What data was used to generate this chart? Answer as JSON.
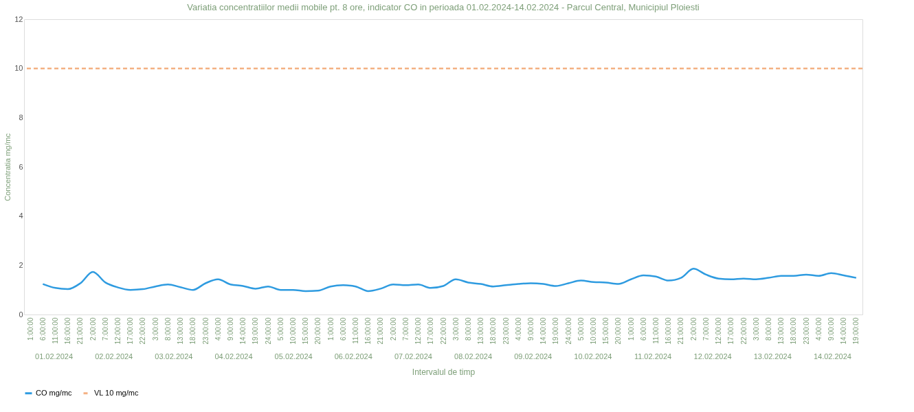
{
  "chart_data": {
    "type": "line",
    "title": "Variatia concentratiilor medii mobile pt. 8 ore, indicator CO in perioada 01.02.2024-14.02.2024 - Parcul Central, Municipiul Ploiesti",
    "xlabel": "Intervalul de timp",
    "ylabel": "Concentratia mg/mc",
    "categories": [
      "1:00:00",
      "6:00:00",
      "11:00:00",
      "16:00:00",
      "21:00:00",
      "2:00:00",
      "7:00:00",
      "12:00:00",
      "17:00:00",
      "22:00:00",
      "3:00:00",
      "8:00:00",
      "13:00:00",
      "18:00:00",
      "23:00:00",
      "4:00:00",
      "9:00:00",
      "14:00:00",
      "19:00:00",
      "24:00:00",
      "5:00:00",
      "10:00:00",
      "15:00:00",
      "20:00:00",
      "1:00:00",
      "6:00:00",
      "11:00:00",
      "16:00:00",
      "21:00:00",
      "2:00:00",
      "7:00:00",
      "12:00:00",
      "17:00:00",
      "22:00:00",
      "3:00:00",
      "8:00:00",
      "13:00:00",
      "18:00:00",
      "23:00:00",
      "4:00:00",
      "9:00:00",
      "14:00:00",
      "19:00:00",
      "24:00:00",
      "5:00:00",
      "10:00:00",
      "15:00:00",
      "20:00:00",
      "1:00:00",
      "6:00:00",
      "11:00:00",
      "16:00:00",
      "21:00:00",
      "2:00:00",
      "7:00:00",
      "12:00:00",
      "17:00:00",
      "22:00:00",
      "3:00:00",
      "8:00:00",
      "13:00:00",
      "18:00:00",
      "23:00:00",
      "4:00:00",
      "9:00:00",
      "14:00:00",
      "19:00:00"
    ],
    "series": [
      {
        "name": "CO mg/mc",
        "color": "#2e9be0",
        "values": [
          null,
          1.24,
          1.08,
          1.03,
          1.27,
          1.73,
          1.3,
          1.1,
          1.0,
          1.03,
          1.14,
          1.22,
          1.11,
          1.0,
          1.27,
          1.43,
          1.22,
          1.16,
          1.05,
          1.14,
          1.0,
          1.0,
          0.95,
          0.97,
          1.14,
          1.19,
          1.14,
          0.95,
          1.05,
          1.22,
          1.19,
          1.22,
          1.08,
          1.16,
          1.43,
          1.3,
          1.24,
          1.14,
          1.19,
          1.24,
          1.27,
          1.24,
          1.16,
          1.27,
          1.38,
          1.32,
          1.3,
          1.24,
          1.43,
          1.59,
          1.54,
          1.38,
          1.49,
          1.86,
          1.62,
          1.46,
          1.43,
          1.46,
          1.43,
          1.49,
          1.57,
          1.57,
          1.62,
          1.57,
          1.68,
          1.59,
          1.49
        ]
      }
    ],
    "ref_lines": [
      {
        "axis": "y",
        "value": 10,
        "label": "VL 10 mg/mc",
        "color": "#f4b183",
        "line_style": "dashed"
      }
    ],
    "ylim": [
      0,
      12
    ],
    "yticks": [
      0,
      2,
      4,
      6,
      8,
      10,
      12
    ],
    "annotations": [
      "01.02.2024",
      "02.02.2024",
      "03.02.2024",
      "04.02.2024",
      "05.02.2024",
      "06.02.2024",
      "07.02.2024",
      "08.02.2024",
      "09.02.2024",
      "10.02.2024",
      "11.02.2024",
      "12.02.2024",
      "13.02.2024",
      "14.02.2024"
    ],
    "grid": false,
    "legend": "bottom",
    "marker": "none",
    "line_style": "solid"
  }
}
